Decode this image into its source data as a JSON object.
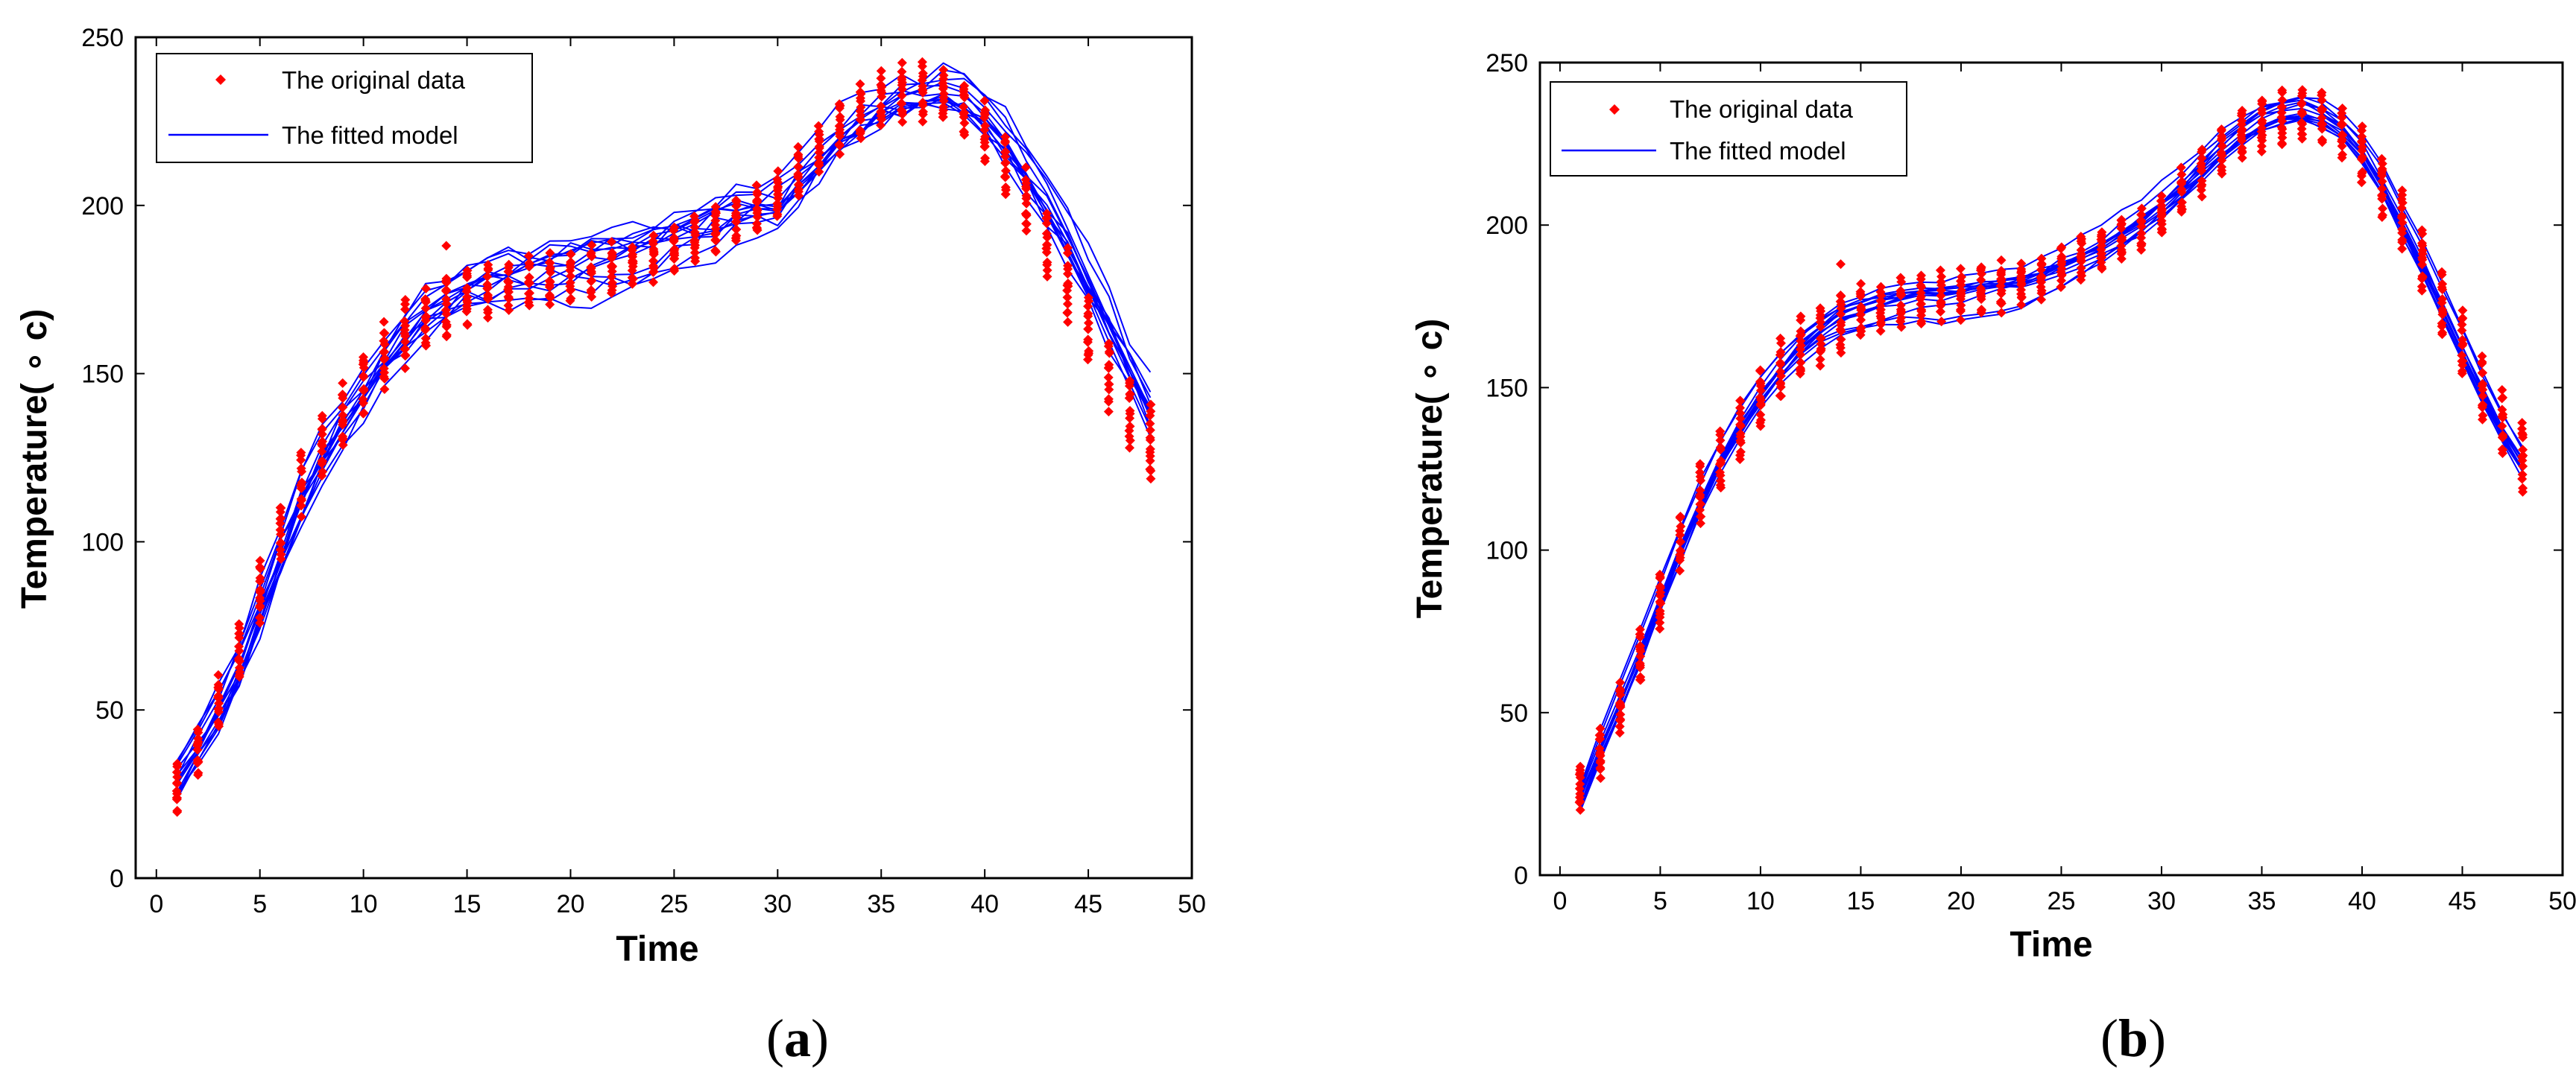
{
  "chart_data": [
    {
      "panel": "a",
      "caption": "(a)",
      "caption_letter": "a",
      "type": "scatter",
      "xlabel": "Time",
      "ylabel": "Temperature( ∘ c)",
      "xlim": [
        -1,
        50
      ],
      "ylim": [
        0,
        250
      ],
      "xticks": [
        0,
        5,
        10,
        15,
        20,
        25,
        30,
        35,
        40,
        45,
        50
      ],
      "yticks": [
        0,
        50,
        100,
        150,
        200,
        250
      ],
      "legend": {
        "position": "top-left",
        "entries": [
          {
            "label": "The original data",
            "marker": "diamond",
            "color": "#ff0000"
          },
          {
            "label": "The fitted model",
            "marker": "line",
            "color": "#0000ff"
          }
        ]
      },
      "series": [
        {
          "name": "The original data",
          "kind": "points",
          "x": [
            1,
            2,
            3,
            4,
            5,
            6,
            7,
            8,
            9,
            10,
            11,
            12,
            13,
            14,
            15,
            16,
            17,
            18,
            19,
            20,
            21,
            22,
            23,
            24,
            25,
            26,
            27,
            28,
            29,
            30,
            31,
            32,
            33,
            34,
            35,
            36,
            37,
            38,
            39,
            40,
            41,
            42,
            43,
            44,
            45,
            46,
            47,
            48
          ],
          "y": [
            27,
            38,
            52,
            67,
            85,
            103,
            117,
            128,
            137,
            147,
            155,
            162,
            166,
            170,
            173,
            175,
            176,
            177,
            178,
            179,
            180,
            181,
            182,
            184,
            187,
            190,
            193,
            196,
            199,
            203,
            210,
            217,
            223,
            228,
            231,
            233,
            234,
            233,
            229,
            222,
            212,
            201,
            189,
            176,
            163,
            150,
            139,
            129
          ],
          "spread": [
            7,
            7,
            7,
            8,
            8,
            8,
            9,
            9,
            9,
            9,
            9,
            9,
            9,
            9,
            8,
            7,
            7,
            7,
            7,
            7,
            7,
            7,
            6,
            6,
            6,
            6,
            6,
            6,
            6,
            6,
            7,
            7,
            7,
            8,
            8,
            8,
            8,
            8,
            8,
            8,
            9,
            9,
            9,
            10,
            10,
            10,
            10,
            11
          ],
          "outliers": [
            {
              "x": 14,
              "y": 188
            }
          ],
          "color": "#ff0000"
        },
        {
          "name": "The fitted model",
          "kind": "curves",
          "x": [
            1,
            2,
            3,
            4,
            5,
            6,
            7,
            8,
            9,
            10,
            11,
            12,
            13,
            14,
            15,
            16,
            17,
            18,
            19,
            20,
            21,
            22,
            23,
            24,
            25,
            26,
            27,
            28,
            29,
            30,
            31,
            32,
            33,
            34,
            35,
            36,
            37,
            38,
            39,
            40,
            41,
            42,
            43,
            44,
            45,
            46,
            47,
            48
          ],
          "y": [
            30,
            40,
            50,
            62,
            78,
            95,
            110,
            123,
            133,
            142,
            152,
            160,
            167,
            172,
            176,
            178,
            180,
            181,
            182,
            183,
            184,
            185,
            186,
            188,
            190,
            192,
            195,
            197,
            198,
            200,
            207,
            214,
            220,
            225,
            229,
            232,
            234,
            234,
            232,
            227,
            219,
            209,
            199,
            188,
            176,
            163,
            150,
            138
          ],
          "curve_count": 14,
          "spread": 9,
          "color": "#0000ff"
        }
      ]
    },
    {
      "panel": "b",
      "caption": "(b)",
      "caption_letter": "b",
      "type": "scatter",
      "xlabel": "Time",
      "ylabel": "Temperature( ∘ c)",
      "xlim": [
        -1,
        50
      ],
      "ylim": [
        0,
        250
      ],
      "xticks": [
        0,
        5,
        10,
        15,
        20,
        25,
        30,
        35,
        40,
        45,
        50
      ],
      "yticks": [
        0,
        50,
        100,
        150,
        200,
        250
      ],
      "legend": {
        "position": "top-left",
        "entries": [
          {
            "label": "The original data",
            "marker": "diamond",
            "color": "#ff0000"
          },
          {
            "label": "The fitted model",
            "marker": "line",
            "color": "#0000ff"
          }
        ]
      },
      "series": [
        {
          "name": "The original data",
          "kind": "points",
          "x": [
            1,
            2,
            3,
            4,
            5,
            6,
            7,
            8,
            9,
            10,
            11,
            12,
            13,
            14,
            15,
            16,
            17,
            18,
            19,
            20,
            21,
            22,
            23,
            24,
            25,
            26,
            27,
            28,
            29,
            30,
            31,
            32,
            33,
            34,
            35,
            36,
            37,
            38,
            39,
            40,
            41,
            42,
            43,
            44,
            45,
            46,
            47,
            48
          ],
          "y": [
            27,
            38,
            52,
            67,
            85,
            103,
            117,
            128,
            137,
            147,
            155,
            162,
            166,
            170,
            173,
            175,
            176,
            177,
            178,
            179,
            180,
            181,
            182,
            184,
            187,
            190,
            193,
            196,
            199,
            203,
            210,
            217,
            223,
            228,
            231,
            233,
            234,
            233,
            229,
            222,
            212,
            201,
            189,
            176,
            163,
            150,
            139,
            129
          ],
          "spread": [
            7,
            7,
            7,
            8,
            8,
            8,
            9,
            9,
            9,
            9,
            9,
            9,
            9,
            9,
            8,
            7,
            7,
            7,
            7,
            7,
            7,
            7,
            6,
            6,
            6,
            6,
            6,
            6,
            6,
            6,
            7,
            7,
            7,
            8,
            8,
            8,
            8,
            8,
            8,
            8,
            9,
            9,
            9,
            10,
            10,
            10,
            10,
            11
          ],
          "outliers": [
            {
              "x": 14,
              "y": 188
            }
          ],
          "color": "#ff0000"
        },
        {
          "name": "The fitted model",
          "kind": "curves",
          "x": [
            1,
            2,
            3,
            4,
            5,
            6,
            7,
            8,
            9,
            10,
            11,
            12,
            13,
            14,
            15,
            16,
            17,
            18,
            19,
            20,
            21,
            22,
            23,
            24,
            25,
            26,
            27,
            28,
            29,
            30,
            31,
            32,
            33,
            34,
            35,
            36,
            37,
            38,
            39,
            40,
            41,
            42,
            43,
            44,
            45,
            46,
            47,
            48
          ],
          "y": [
            22,
            38,
            53,
            68,
            84,
            100,
            115,
            128,
            139,
            148,
            156,
            163,
            168,
            172,
            174,
            176,
            177,
            178,
            178,
            179,
            180,
            181,
            182,
            184,
            187,
            190,
            193,
            197,
            201,
            206,
            211,
            217,
            223,
            228,
            232,
            234,
            235,
            233,
            229,
            222,
            212,
            200,
            188,
            175,
            162,
            149,
            137,
            127
          ],
          "curve_count": 14,
          "spread": 7,
          "color": "#0000ff"
        }
      ]
    }
  ]
}
